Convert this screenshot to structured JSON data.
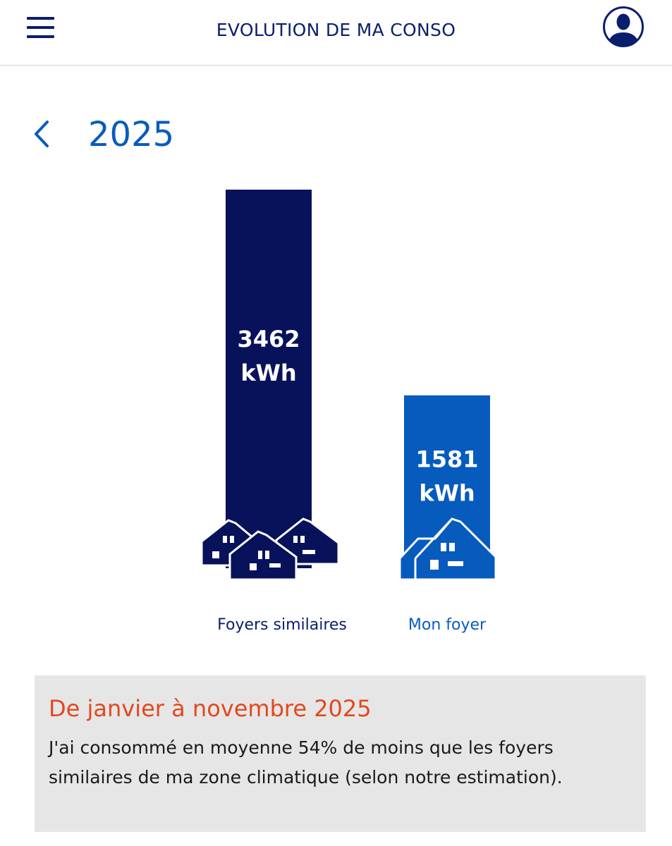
{
  "header": {
    "title": "EVOLUTION DE MA CONSO"
  },
  "year_nav": {
    "year": "2025"
  },
  "chart_data": {
    "type": "bar",
    "categories": [
      "Foyers similaires",
      "Mon foyer"
    ],
    "values": [
      3462,
      1581
    ],
    "unit": "kWh",
    "value_labels": [
      "3462",
      "1581"
    ],
    "colors": [
      "#07125a",
      "#065bbd"
    ],
    "label_colors": [
      "#0a1e6e",
      "#0a5bbd"
    ],
    "ylim": [
      0,
      3462
    ]
  },
  "info": {
    "title": "De janvier à novembre 2025",
    "text": "J'ai consommé en moyenne 54% de moins que les foyers similaires de ma zone climatique (selon notre estimation)."
  },
  "icons": {
    "menu": "hamburger-menu-icon",
    "profile": "user-profile-icon",
    "back": "chevron-left-icon",
    "similar_homes": "houses-group-icon",
    "my_home": "house-icon"
  }
}
